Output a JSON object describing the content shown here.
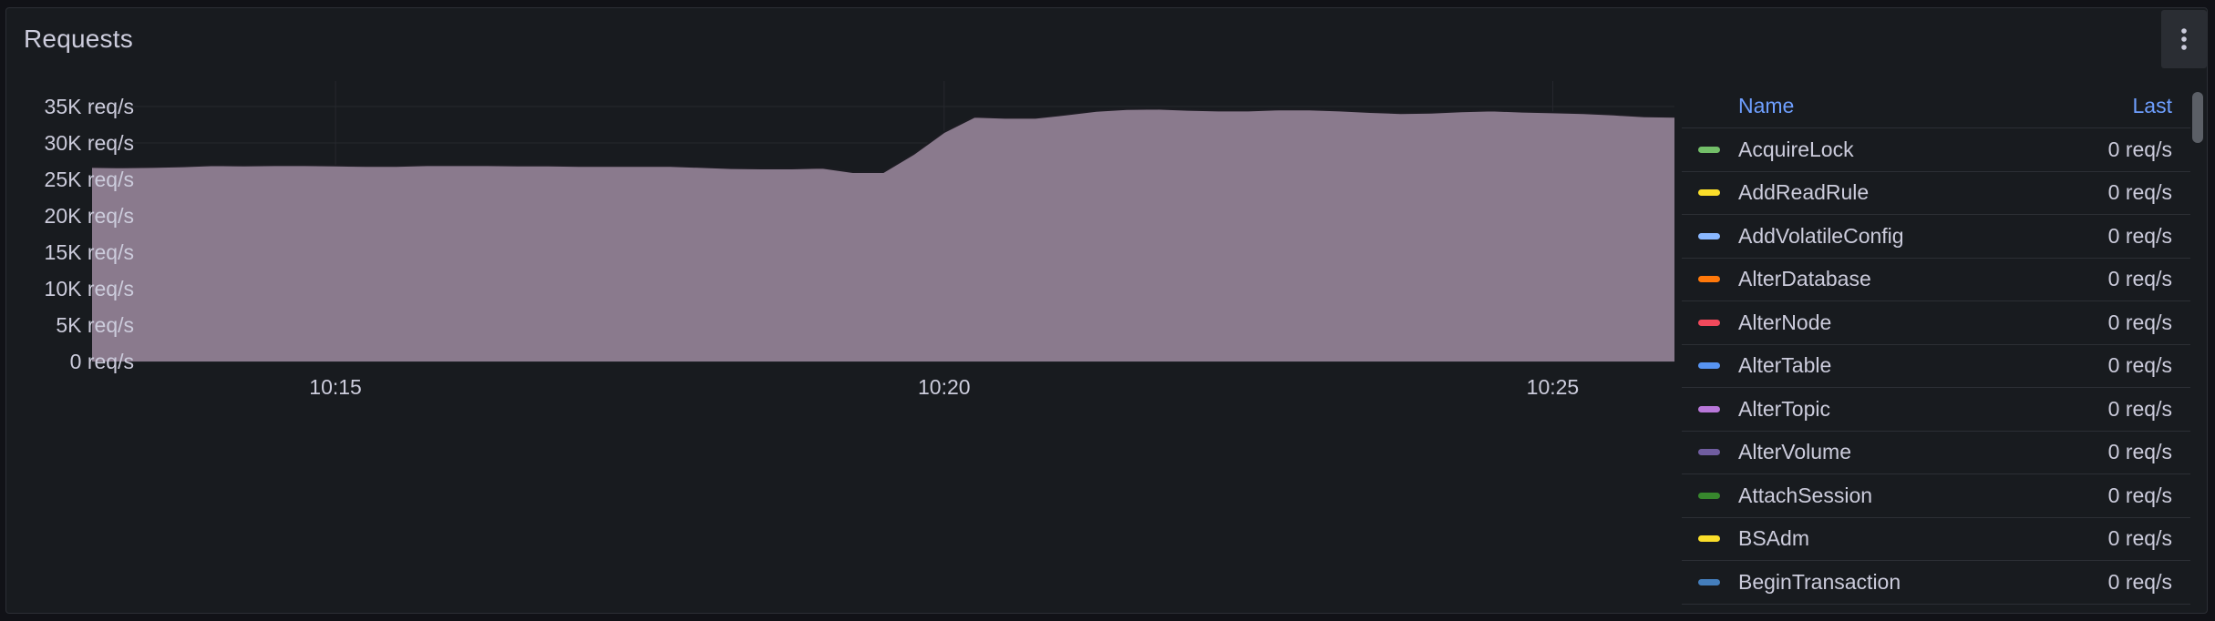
{
  "panel": {
    "title": "Requests",
    "menu_icon": "kebab-vertical-icon"
  },
  "legend": {
    "header_name": "Name",
    "header_last": "Last",
    "items": [
      {
        "name": "AcquireLock",
        "last": "0 req/s",
        "color": "#73bf69"
      },
      {
        "name": "AddReadRule",
        "last": "0 req/s",
        "color": "#fade2a"
      },
      {
        "name": "AddVolatileConfig",
        "last": "0 req/s",
        "color": "#8ab8ff"
      },
      {
        "name": "AlterDatabase",
        "last": "0 req/s",
        "color": "#ff780a"
      },
      {
        "name": "AlterNode",
        "last": "0 req/s",
        "color": "#f2495c"
      },
      {
        "name": "AlterTable",
        "last": "0 req/s",
        "color": "#5794f2"
      },
      {
        "name": "AlterTopic",
        "last": "0 req/s",
        "color": "#b877d9"
      },
      {
        "name": "AlterVolume",
        "last": "0 req/s",
        "color": "#705da0"
      },
      {
        "name": "AttachSession",
        "last": "0 req/s",
        "color": "#37872d"
      },
      {
        "name": "BSAdm",
        "last": "0 req/s",
        "color": "#fade2a"
      },
      {
        "name": "BeginTransaction",
        "last": "0 req/s",
        "color": "#447ebc"
      }
    ]
  },
  "chart_data": {
    "type": "area",
    "title": "Requests",
    "y_ticks": [
      "0 req/s",
      "5K req/s",
      "10K req/s",
      "15K req/s",
      "20K req/s",
      "25K req/s",
      "30K req/s",
      "35K req/s"
    ],
    "y_tick_values": [
      0,
      5000,
      10000,
      15000,
      20000,
      25000,
      30000,
      35000
    ],
    "ylim": [
      0,
      38500
    ],
    "x_ticks": [
      "10:15",
      "10:20",
      "10:25"
    ],
    "x_tick_minutes": [
      15,
      20,
      25
    ],
    "xlim": [
      13.0,
      26.0
    ],
    "grid": true,
    "legend_placement": "right",
    "fill_color": "#8a7a8d",
    "line_color": "#1c1c22",
    "series": [
      {
        "x": [
          13.0,
          13.25,
          13.5,
          13.75,
          14.0,
          14.25,
          14.5,
          14.75,
          15.0,
          15.25,
          15.5,
          15.75,
          16.0,
          16.25,
          16.5,
          16.75,
          17.0,
          17.25,
          17.5,
          17.75,
          18.0,
          18.25,
          18.5,
          18.75,
          19.0,
          19.25,
          19.5,
          19.75,
          20.0,
          20.25,
          20.5,
          20.75,
          21.0,
          21.25,
          21.5,
          21.75,
          22.0,
          22.25,
          22.5,
          22.75,
          23.0,
          23.25,
          23.5,
          23.75,
          24.0,
          24.25,
          24.5,
          24.75,
          25.0,
          25.25,
          25.5,
          25.75,
          26.0
        ],
        "values": [
          26700,
          26650,
          26700,
          26800,
          26950,
          26900,
          26950,
          26950,
          26900,
          26850,
          26850,
          26950,
          26950,
          26950,
          26900,
          26900,
          26850,
          26850,
          26850,
          26850,
          26700,
          26550,
          26500,
          26500,
          26600,
          26000,
          26000,
          28500,
          31500,
          33600,
          33450,
          33450,
          33900,
          34400,
          34650,
          34700,
          34550,
          34450,
          34450,
          34600,
          34600,
          34450,
          34250,
          34100,
          34150,
          34350,
          34450,
          34300,
          34200,
          34100,
          33900,
          33650,
          33600
        ]
      }
    ]
  }
}
